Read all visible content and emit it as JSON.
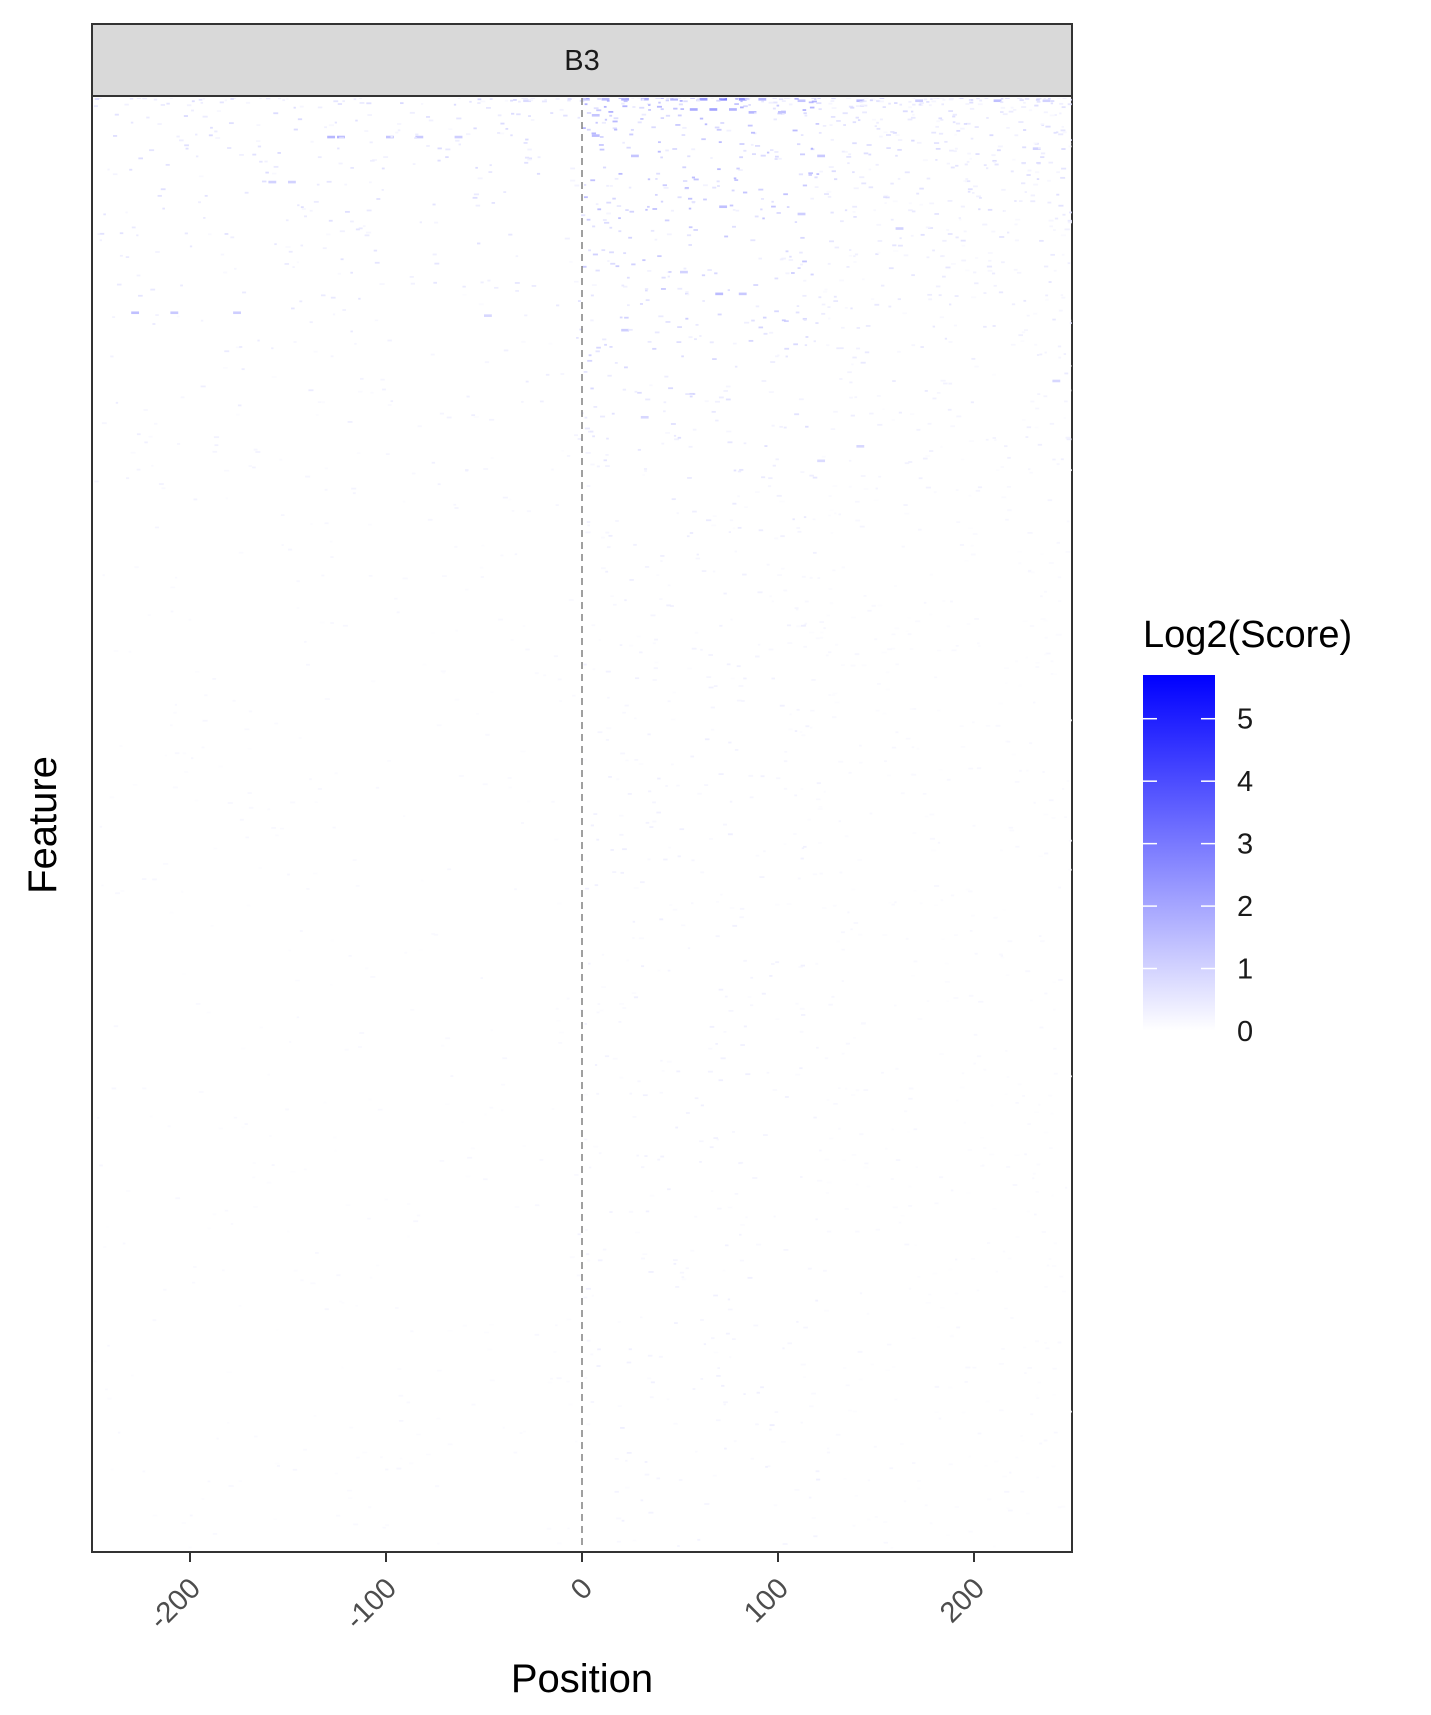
{
  "chart_data": {
    "type": "heatmap",
    "facet_label": "B3",
    "xlabel": "Position",
    "ylabel": "Feature",
    "xlim": [
      -250,
      250
    ],
    "x_ticks": [
      -200,
      -100,
      0,
      100,
      200
    ],
    "x_tick_labels": [
      "-200",
      "-100",
      "0",
      "100",
      "200"
    ],
    "y_ticks_shown": false,
    "grid": false,
    "reference_line": {
      "x": 0,
      "style": "dashed",
      "color": "#888888"
    },
    "legend": {
      "title": "Log2(Score)",
      "placement": "right",
      "breaks": [
        0,
        1,
        2,
        3,
        4,
        5
      ],
      "break_labels": [
        "0",
        "1",
        "2",
        "3",
        "4",
        "5"
      ],
      "range": [
        0,
        5.7
      ],
      "low_color": "#ffffff",
      "high_color": "#0000ff"
    },
    "features": 1000,
    "cells": [
      {
        "x": 0,
        "feature": 1,
        "value": 1.2
      },
      {
        "x": 10,
        "feature": 1,
        "value": 1.5
      },
      {
        "x": 20,
        "feature": 1,
        "value": 1.8
      },
      {
        "x": 30,
        "feature": 1,
        "value": 1.4
      },
      {
        "x": 45,
        "feature": 1,
        "value": 1.6
      },
      {
        "x": 60,
        "feature": 1,
        "value": 2.2
      },
      {
        "x": 70,
        "feature": 1,
        "value": 2.8
      },
      {
        "x": 80,
        "feature": 1,
        "value": 2.4
      },
      {
        "x": 90,
        "feature": 1,
        "value": 1.6
      },
      {
        "x": 110,
        "feature": 2,
        "value": 1.3
      },
      {
        "x": 140,
        "feature": 2,
        "value": 1.5
      },
      {
        "x": 170,
        "feature": 2,
        "value": 1.1
      },
      {
        "x": 210,
        "feature": 2,
        "value": 1.4
      },
      {
        "x": 235,
        "feature": 2,
        "value": 1.0
      },
      {
        "x": -30,
        "feature": 2,
        "value": 0.8
      },
      {
        "x": 55,
        "feature": 8,
        "value": 1.9
      },
      {
        "x": 65,
        "feature": 8,
        "value": 2.1
      },
      {
        "x": 75,
        "feature": 8,
        "value": 1.7
      },
      {
        "x": 85,
        "feature": 10,
        "value": 1.6
      },
      {
        "x": 100,
        "feature": 10,
        "value": 1.4
      },
      {
        "x": 5,
        "feature": 12,
        "value": 1.3
      },
      {
        "x": -130,
        "feature": 27,
        "value": 1.6
      },
      {
        "x": -125,
        "feature": 27,
        "value": 1.7
      },
      {
        "x": -100,
        "feature": 27,
        "value": 1.3
      },
      {
        "x": -85,
        "feature": 27,
        "value": 1.2
      },
      {
        "x": -65,
        "feature": 27,
        "value": 1.1
      },
      {
        "x": 5,
        "feature": 26,
        "value": 1.5
      },
      {
        "x": 25,
        "feature": 40,
        "value": 1.3
      },
      {
        "x": 120,
        "feature": 40,
        "value": 1.2
      },
      {
        "x": 230,
        "feature": 35,
        "value": 1.0
      },
      {
        "x": -160,
        "feature": 58,
        "value": 1.0
      },
      {
        "x": -150,
        "feature": 58,
        "value": 1.0
      },
      {
        "x": 70,
        "feature": 75,
        "value": 1.4
      },
      {
        "x": 110,
        "feature": 80,
        "value": 1.1
      },
      {
        "x": 160,
        "feature": 90,
        "value": 1.0
      },
      {
        "x": 50,
        "feature": 120,
        "value": 1.0
      },
      {
        "x": 80,
        "feature": 135,
        "value": 1.2
      },
      {
        "x": -50,
        "feature": 150,
        "value": 0.9
      },
      {
        "x": 20,
        "feature": 160,
        "value": 1.1
      },
      {
        "x": 68,
        "feature": 135,
        "value": 1.5
      },
      {
        "x": -230,
        "feature": 148,
        "value": 1.4
      },
      {
        "x": -210,
        "feature": 148,
        "value": 1.2
      },
      {
        "x": -178,
        "feature": 148,
        "value": 1.1
      },
      {
        "x": 240,
        "feature": 195,
        "value": 0.9
      },
      {
        "x": 30,
        "feature": 220,
        "value": 0.9
      },
      {
        "x": 120,
        "feature": 250,
        "value": 0.8
      },
      {
        "x": 140,
        "feature": 240,
        "value": 0.9
      }
    ]
  }
}
